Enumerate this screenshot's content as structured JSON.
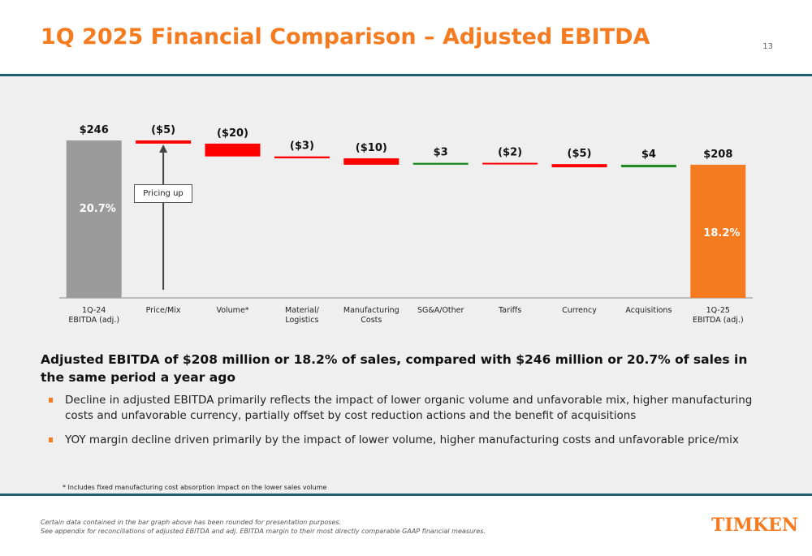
{
  "header": {
    "title": "1Q 2025 Financial Comparison – Adjusted EBITDA",
    "page_number": "13"
  },
  "colors": {
    "accent": "#f47b20",
    "rule": "#1d5f6e",
    "negative": "#ff0000",
    "positive": "#228b22",
    "start_bar": "#9b9b9b",
    "end_bar": "#f47b20"
  },
  "chart_data": {
    "type": "bar",
    "subtype": "waterfall",
    "categories": [
      "1Q-24 EBITDA (adj.)",
      "Price/Mix",
      "Volume*",
      "Material/ Logistics",
      "Manufacturing Costs",
      "SG&A/Other",
      "Tariffs",
      "Currency",
      "Acquisitions",
      "1Q-25 EBITDA (adj.)"
    ],
    "tick_labels": [
      [
        "1Q-24",
        "EBITDA (adj.)"
      ],
      [
        "Price/Mix"
      ],
      [
        "Volume*"
      ],
      [
        "Material/",
        "Logistics"
      ],
      [
        "Manufacturing",
        "Costs"
      ],
      [
        "SG&A/Other"
      ],
      [
        "Tariffs"
      ],
      [
        "Currency"
      ],
      [
        "Acquisitions"
      ],
      [
        "1Q-25",
        "EBITDA (adj.)"
      ]
    ],
    "values": [
      246,
      -5,
      -20,
      -3,
      -10,
      3,
      -2,
      -5,
      4,
      208
    ],
    "kinds": [
      "total",
      "delta",
      "delta",
      "delta",
      "delta",
      "delta",
      "delta",
      "delta",
      "delta",
      "total"
    ],
    "value_labels": [
      "$246",
      "($5)",
      "($20)",
      "($3)",
      "($10)",
      "$3",
      "($2)",
      "($5)",
      "$4",
      "$208"
    ],
    "margin_labels": [
      "20.7%",
      "",
      "",
      "",
      "",
      "",
      "",
      "",
      "",
      "18.2%"
    ],
    "ylim": [
      0,
      260
    ],
    "annotation": "Pricing up"
  },
  "summary": {
    "headline": "Adjusted EBITDA of $208 million or 18.2% of sales, compared with $246 million or 20.7% of sales in the same period a year ago",
    "bullets": [
      "Decline in adjusted EBITDA primarily reflects the impact of lower organic volume and unfavorable mix, higher manufacturing costs and unfavorable currency, partially offset by cost reduction actions and the benefit of acquisitions",
      "YOY margin decline driven primarily by the impact of lower volume, higher manufacturing costs and unfavorable price/mix"
    ],
    "footnote": "* Includes fixed manufacturing cost absorption impact on the lower sales volume"
  },
  "footer": {
    "disclaimer_line1": "Certain data contained in the bar graph above has been rounded for presentation purposes.",
    "disclaimer_line2": "See appendix for reconciliations of adjusted EBITDA and adj. EBITDA margin to their most directly comparable GAAP financial measures.",
    "logo": "TIMKEN"
  }
}
